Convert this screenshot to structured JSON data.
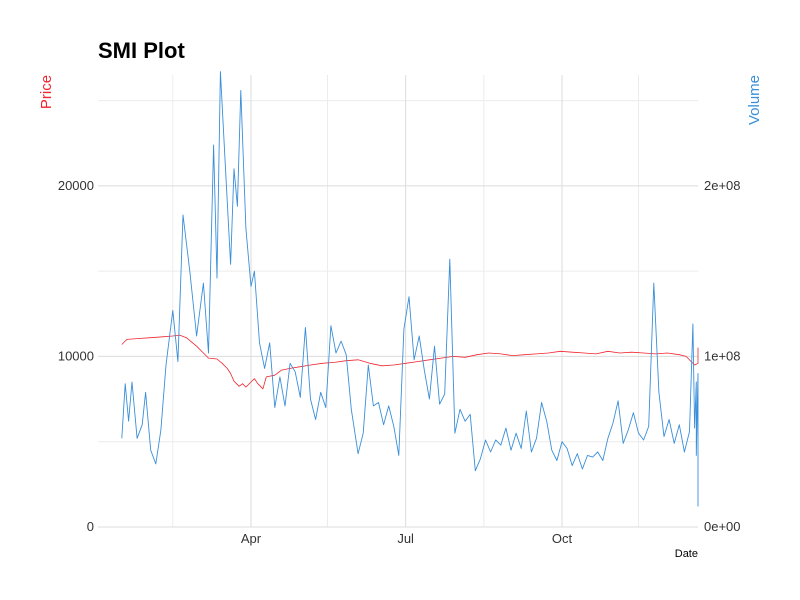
{
  "colors": {
    "price": "#f0252f",
    "volume": "#3a8fd9",
    "grid_major": "#dcdcdc",
    "grid_minor": "#ececec",
    "background": "#ffffff"
  },
  "chart_data": {
    "type": "line",
    "title": "SMI Plot",
    "xlabel": "Date",
    "ylabel_left": "Price",
    "ylabel_right": "Volume",
    "x_ticks": [
      {
        "date": "1991-04-01",
        "label": "Apr"
      },
      {
        "date": "1991-07-01",
        "label": "Jul"
      },
      {
        "date": "1991-10-01",
        "label": "Oct"
      }
    ],
    "x_minor_ticks": [
      "1991-02-14",
      "1991-05-16",
      "1991-08-16",
      "1991-11-15"
    ],
    "xlim": [
      "1991-01-01",
      "1991-12-20"
    ],
    "y_left_ticks": [
      {
        "value": 0,
        "label": "0"
      },
      {
        "value": 10000,
        "label": "10000"
      },
      {
        "value": 20000,
        "label": "20000"
      }
    ],
    "y_right_ticks": [
      {
        "value": 0,
        "label": "0e+00"
      },
      {
        "value": 100000000,
        "label": "1e+08"
      },
      {
        "value": 200000000,
        "label": "2e+08"
      }
    ],
    "ylim_left": [
      0,
      26500
    ],
    "ylim_right": [
      0,
      265000000
    ],
    "grid": true,
    "series": [
      {
        "name": "Price",
        "axis": "left",
        "color": "#f0252f",
        "points": [
          [
            "1991-01-15",
            10700
          ],
          [
            "1991-01-18",
            11000
          ],
          [
            "1991-01-25",
            11050
          ],
          [
            "1991-02-01",
            11100
          ],
          [
            "1991-02-08",
            11150
          ],
          [
            "1991-02-14",
            11200
          ],
          [
            "1991-02-18",
            11250
          ],
          [
            "1991-02-22",
            11100
          ],
          [
            "1991-02-25",
            10850
          ],
          [
            "1991-02-28",
            10600
          ],
          [
            "1991-03-04",
            10200
          ],
          [
            "1991-03-07",
            9900
          ],
          [
            "1991-03-12",
            9850
          ],
          [
            "1991-03-15",
            9600
          ],
          [
            "1991-03-18",
            9300
          ],
          [
            "1991-03-20",
            9000
          ],
          [
            "1991-03-22",
            8550
          ],
          [
            "1991-03-25",
            8250
          ],
          [
            "1991-03-27",
            8400
          ],
          [
            "1991-03-29",
            8200
          ],
          [
            "1991-04-01",
            8500
          ],
          [
            "1991-04-03",
            8700
          ],
          [
            "1991-04-05",
            8400
          ],
          [
            "1991-04-08",
            8100
          ],
          [
            "1991-04-10",
            8800
          ],
          [
            "1991-04-15",
            8900
          ],
          [
            "1991-04-19",
            9200
          ],
          [
            "1991-04-24",
            9300
          ],
          [
            "1991-04-30",
            9400
          ],
          [
            "1991-05-06",
            9500
          ],
          [
            "1991-05-13",
            9600
          ],
          [
            "1991-05-20",
            9650
          ],
          [
            "1991-05-27",
            9750
          ],
          [
            "1991-06-03",
            9800
          ],
          [
            "1991-06-10",
            9600
          ],
          [
            "1991-06-17",
            9450
          ],
          [
            "1991-06-24",
            9500
          ],
          [
            "1991-07-01",
            9600
          ],
          [
            "1991-07-08",
            9700
          ],
          [
            "1991-07-15",
            9800
          ],
          [
            "1991-07-22",
            9900
          ],
          [
            "1991-07-29",
            10000
          ],
          [
            "1991-08-05",
            9950
          ],
          [
            "1991-08-12",
            10100
          ],
          [
            "1991-08-19",
            10200
          ],
          [
            "1991-08-26",
            10150
          ],
          [
            "1991-09-02",
            10050
          ],
          [
            "1991-09-09",
            10100
          ],
          [
            "1991-09-16",
            10150
          ],
          [
            "1991-09-23",
            10200
          ],
          [
            "1991-09-30",
            10300
          ],
          [
            "1991-10-07",
            10250
          ],
          [
            "1991-10-14",
            10200
          ],
          [
            "1991-10-21",
            10150
          ],
          [
            "1991-10-28",
            10300
          ],
          [
            "1991-11-04",
            10200
          ],
          [
            "1991-11-11",
            10250
          ],
          [
            "1991-11-18",
            10200
          ],
          [
            "1991-11-25",
            10150
          ],
          [
            "1991-12-02",
            10200
          ],
          [
            "1991-12-09",
            10100
          ],
          [
            "1991-12-13",
            10000
          ],
          [
            "1991-12-16",
            9700
          ],
          [
            "1991-12-18",
            9500
          ],
          [
            "1991-12-20",
            9600
          ],
          [
            "1991-12-20",
            10200
          ],
          [
            "1991-12-20",
            10500
          ],
          [
            "1991-12-20",
            10450
          ]
        ]
      },
      {
        "name": "Volume",
        "axis": "right",
        "color": "#3a8fd9",
        "points": [
          [
            "1991-01-15",
            52000000
          ],
          [
            "1991-01-17",
            84000000
          ],
          [
            "1991-01-19",
            62000000
          ],
          [
            "1991-01-21",
            85000000
          ],
          [
            "1991-01-24",
            52000000
          ],
          [
            "1991-01-27",
            60000000
          ],
          [
            "1991-01-29",
            79000000
          ],
          [
            "1991-02-01",
            45000000
          ],
          [
            "1991-02-04",
            37000000
          ],
          [
            "1991-02-07",
            57000000
          ],
          [
            "1991-02-10",
            95000000
          ],
          [
            "1991-02-14",
            127000000
          ],
          [
            "1991-02-17",
            97000000
          ],
          [
            "1991-02-20",
            183000000
          ],
          [
            "1991-02-24",
            150000000
          ],
          [
            "1991-02-28",
            112000000
          ],
          [
            "1991-03-04",
            143000000
          ],
          [
            "1991-03-07",
            102000000
          ],
          [
            "1991-03-10",
            224000000
          ],
          [
            "1991-03-12",
            146000000
          ],
          [
            "1991-03-14",
            267000000
          ],
          [
            "1991-03-17",
            210000000
          ],
          [
            "1991-03-20",
            154000000
          ],
          [
            "1991-03-22",
            210000000
          ],
          [
            "1991-03-24",
            188000000
          ],
          [
            "1991-03-26",
            256000000
          ],
          [
            "1991-03-29",
            175000000
          ],
          [
            "1991-04-01",
            141000000
          ],
          [
            "1991-04-03",
            150000000
          ],
          [
            "1991-04-06",
            108000000
          ],
          [
            "1991-04-09",
            93000000
          ],
          [
            "1991-04-12",
            108000000
          ],
          [
            "1991-04-15",
            70000000
          ],
          [
            "1991-04-18",
            88000000
          ],
          [
            "1991-04-21",
            71000000
          ],
          [
            "1991-04-24",
            96000000
          ],
          [
            "1991-04-27",
            91000000
          ],
          [
            "1991-04-30",
            76000000
          ],
          [
            "1991-05-03",
            117000000
          ],
          [
            "1991-05-06",
            75000000
          ],
          [
            "1991-05-09",
            63000000
          ],
          [
            "1991-05-12",
            79000000
          ],
          [
            "1991-05-15",
            70000000
          ],
          [
            "1991-05-18",
            118000000
          ],
          [
            "1991-05-21",
            102000000
          ],
          [
            "1991-05-24",
            109000000
          ],
          [
            "1991-05-27",
            101000000
          ],
          [
            "1991-05-30",
            69000000
          ],
          [
            "1991-06-03",
            43000000
          ],
          [
            "1991-06-06",
            55000000
          ],
          [
            "1991-06-09",
            95000000
          ],
          [
            "1991-06-12",
            71000000
          ],
          [
            "1991-06-15",
            73000000
          ],
          [
            "1991-06-18",
            60000000
          ],
          [
            "1991-06-21",
            71000000
          ],
          [
            "1991-06-24",
            59000000
          ],
          [
            "1991-06-27",
            42000000
          ],
          [
            "1991-06-30",
            116000000
          ],
          [
            "1991-07-03",
            135000000
          ],
          [
            "1991-07-06",
            98000000
          ],
          [
            "1991-07-09",
            112000000
          ],
          [
            "1991-07-12",
            92000000
          ],
          [
            "1991-07-15",
            75000000
          ],
          [
            "1991-07-18",
            106000000
          ],
          [
            "1991-07-21",
            72000000
          ],
          [
            "1991-07-24",
            78000000
          ],
          [
            "1991-07-27",
            157000000
          ],
          [
            "1991-07-30",
            55000000
          ],
          [
            "1991-08-02",
            69000000
          ],
          [
            "1991-08-05",
            62000000
          ],
          [
            "1991-08-08",
            66000000
          ],
          [
            "1991-08-11",
            33000000
          ],
          [
            "1991-08-14",
            40000000
          ],
          [
            "1991-08-17",
            51000000
          ],
          [
            "1991-08-20",
            44000000
          ],
          [
            "1991-08-23",
            51000000
          ],
          [
            "1991-08-26",
            48000000
          ],
          [
            "1991-08-29",
            58000000
          ],
          [
            "1991-09-01",
            45000000
          ],
          [
            "1991-09-04",
            55000000
          ],
          [
            "1991-09-07",
            46000000
          ],
          [
            "1991-09-10",
            68000000
          ],
          [
            "1991-09-13",
            44000000
          ],
          [
            "1991-09-16",
            52000000
          ],
          [
            "1991-09-19",
            73000000
          ],
          [
            "1991-09-22",
            62000000
          ],
          [
            "1991-09-25",
            45000000
          ],
          [
            "1991-09-28",
            39000000
          ],
          [
            "1991-10-01",
            50000000
          ],
          [
            "1991-10-04",
            46000000
          ],
          [
            "1991-10-07",
            36000000
          ],
          [
            "1991-10-10",
            43000000
          ],
          [
            "1991-10-13",
            34000000
          ],
          [
            "1991-10-16",
            42000000
          ],
          [
            "1991-10-19",
            41000000
          ],
          [
            "1991-10-22",
            44000000
          ],
          [
            "1991-10-25",
            39000000
          ],
          [
            "1991-10-28",
            52000000
          ],
          [
            "1991-10-31",
            61000000
          ],
          [
            "1991-11-03",
            74000000
          ],
          [
            "1991-11-06",
            49000000
          ],
          [
            "1991-11-09",
            57000000
          ],
          [
            "1991-11-12",
            67000000
          ],
          [
            "1991-11-15",
            55000000
          ],
          [
            "1991-11-18",
            51000000
          ],
          [
            "1991-11-21",
            59000000
          ],
          [
            "1991-11-24",
            143000000
          ],
          [
            "1991-11-27",
            79000000
          ],
          [
            "1991-11-30",
            53000000
          ],
          [
            "1991-12-03",
            63000000
          ],
          [
            "1991-12-06",
            49000000
          ],
          [
            "1991-12-09",
            60000000
          ],
          [
            "1991-12-12",
            44000000
          ],
          [
            "1991-12-15",
            56000000
          ],
          [
            "1991-12-17",
            119000000
          ],
          [
            "1991-12-18",
            58000000
          ],
          [
            "1991-12-19",
            85000000
          ],
          [
            "1991-12-19",
            42000000
          ],
          [
            "1991-12-20",
            90000000
          ],
          [
            "1991-12-20",
            12000000
          ]
        ]
      }
    ]
  }
}
